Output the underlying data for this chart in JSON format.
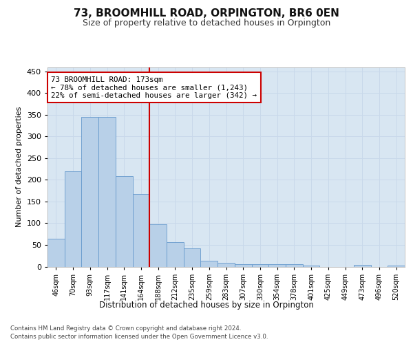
{
  "title": "73, BROOMHILL ROAD, ORPINGTON, BR6 0EN",
  "subtitle": "Size of property relative to detached houses in Orpington",
  "xlabel": "Distribution of detached houses by size in Orpington",
  "ylabel": "Number of detached properties",
  "bin_labels": [
    "46sqm",
    "70sqm",
    "93sqm",
    "117sqm",
    "141sqm",
    "164sqm",
    "188sqm",
    "212sqm",
    "235sqm",
    "259sqm",
    "283sqm",
    "307sqm",
    "330sqm",
    "354sqm",
    "378sqm",
    "401sqm",
    "425sqm",
    "449sqm",
    "473sqm",
    "496sqm",
    "520sqm"
  ],
  "bar_values": [
    65,
    220,
    345,
    345,
    208,
    168,
    97,
    57,
    42,
    13,
    8,
    6,
    6,
    5,
    5,
    3,
    0,
    0,
    4,
    0,
    3
  ],
  "bar_color": "#b8d0e8",
  "bar_edge_color": "#6699cc",
  "grid_color": "#c8d8ea",
  "background_color": "#d8e6f2",
  "vline_x": 5.5,
  "vline_color": "#cc0000",
  "annotation_text": "73 BROOMHILL ROAD: 173sqm\n← 78% of detached houses are smaller (1,243)\n22% of semi-detached houses are larger (342) →",
  "annotation_box_facecolor": "#ffffff",
  "annotation_box_edgecolor": "#cc0000",
  "ylim": [
    0,
    460
  ],
  "yticks": [
    0,
    50,
    100,
    150,
    200,
    250,
    300,
    350,
    400,
    450
  ],
  "footer_line1": "Contains HM Land Registry data © Crown copyright and database right 2024.",
  "footer_line2": "Contains public sector information licensed under the Open Government Licence v3.0."
}
